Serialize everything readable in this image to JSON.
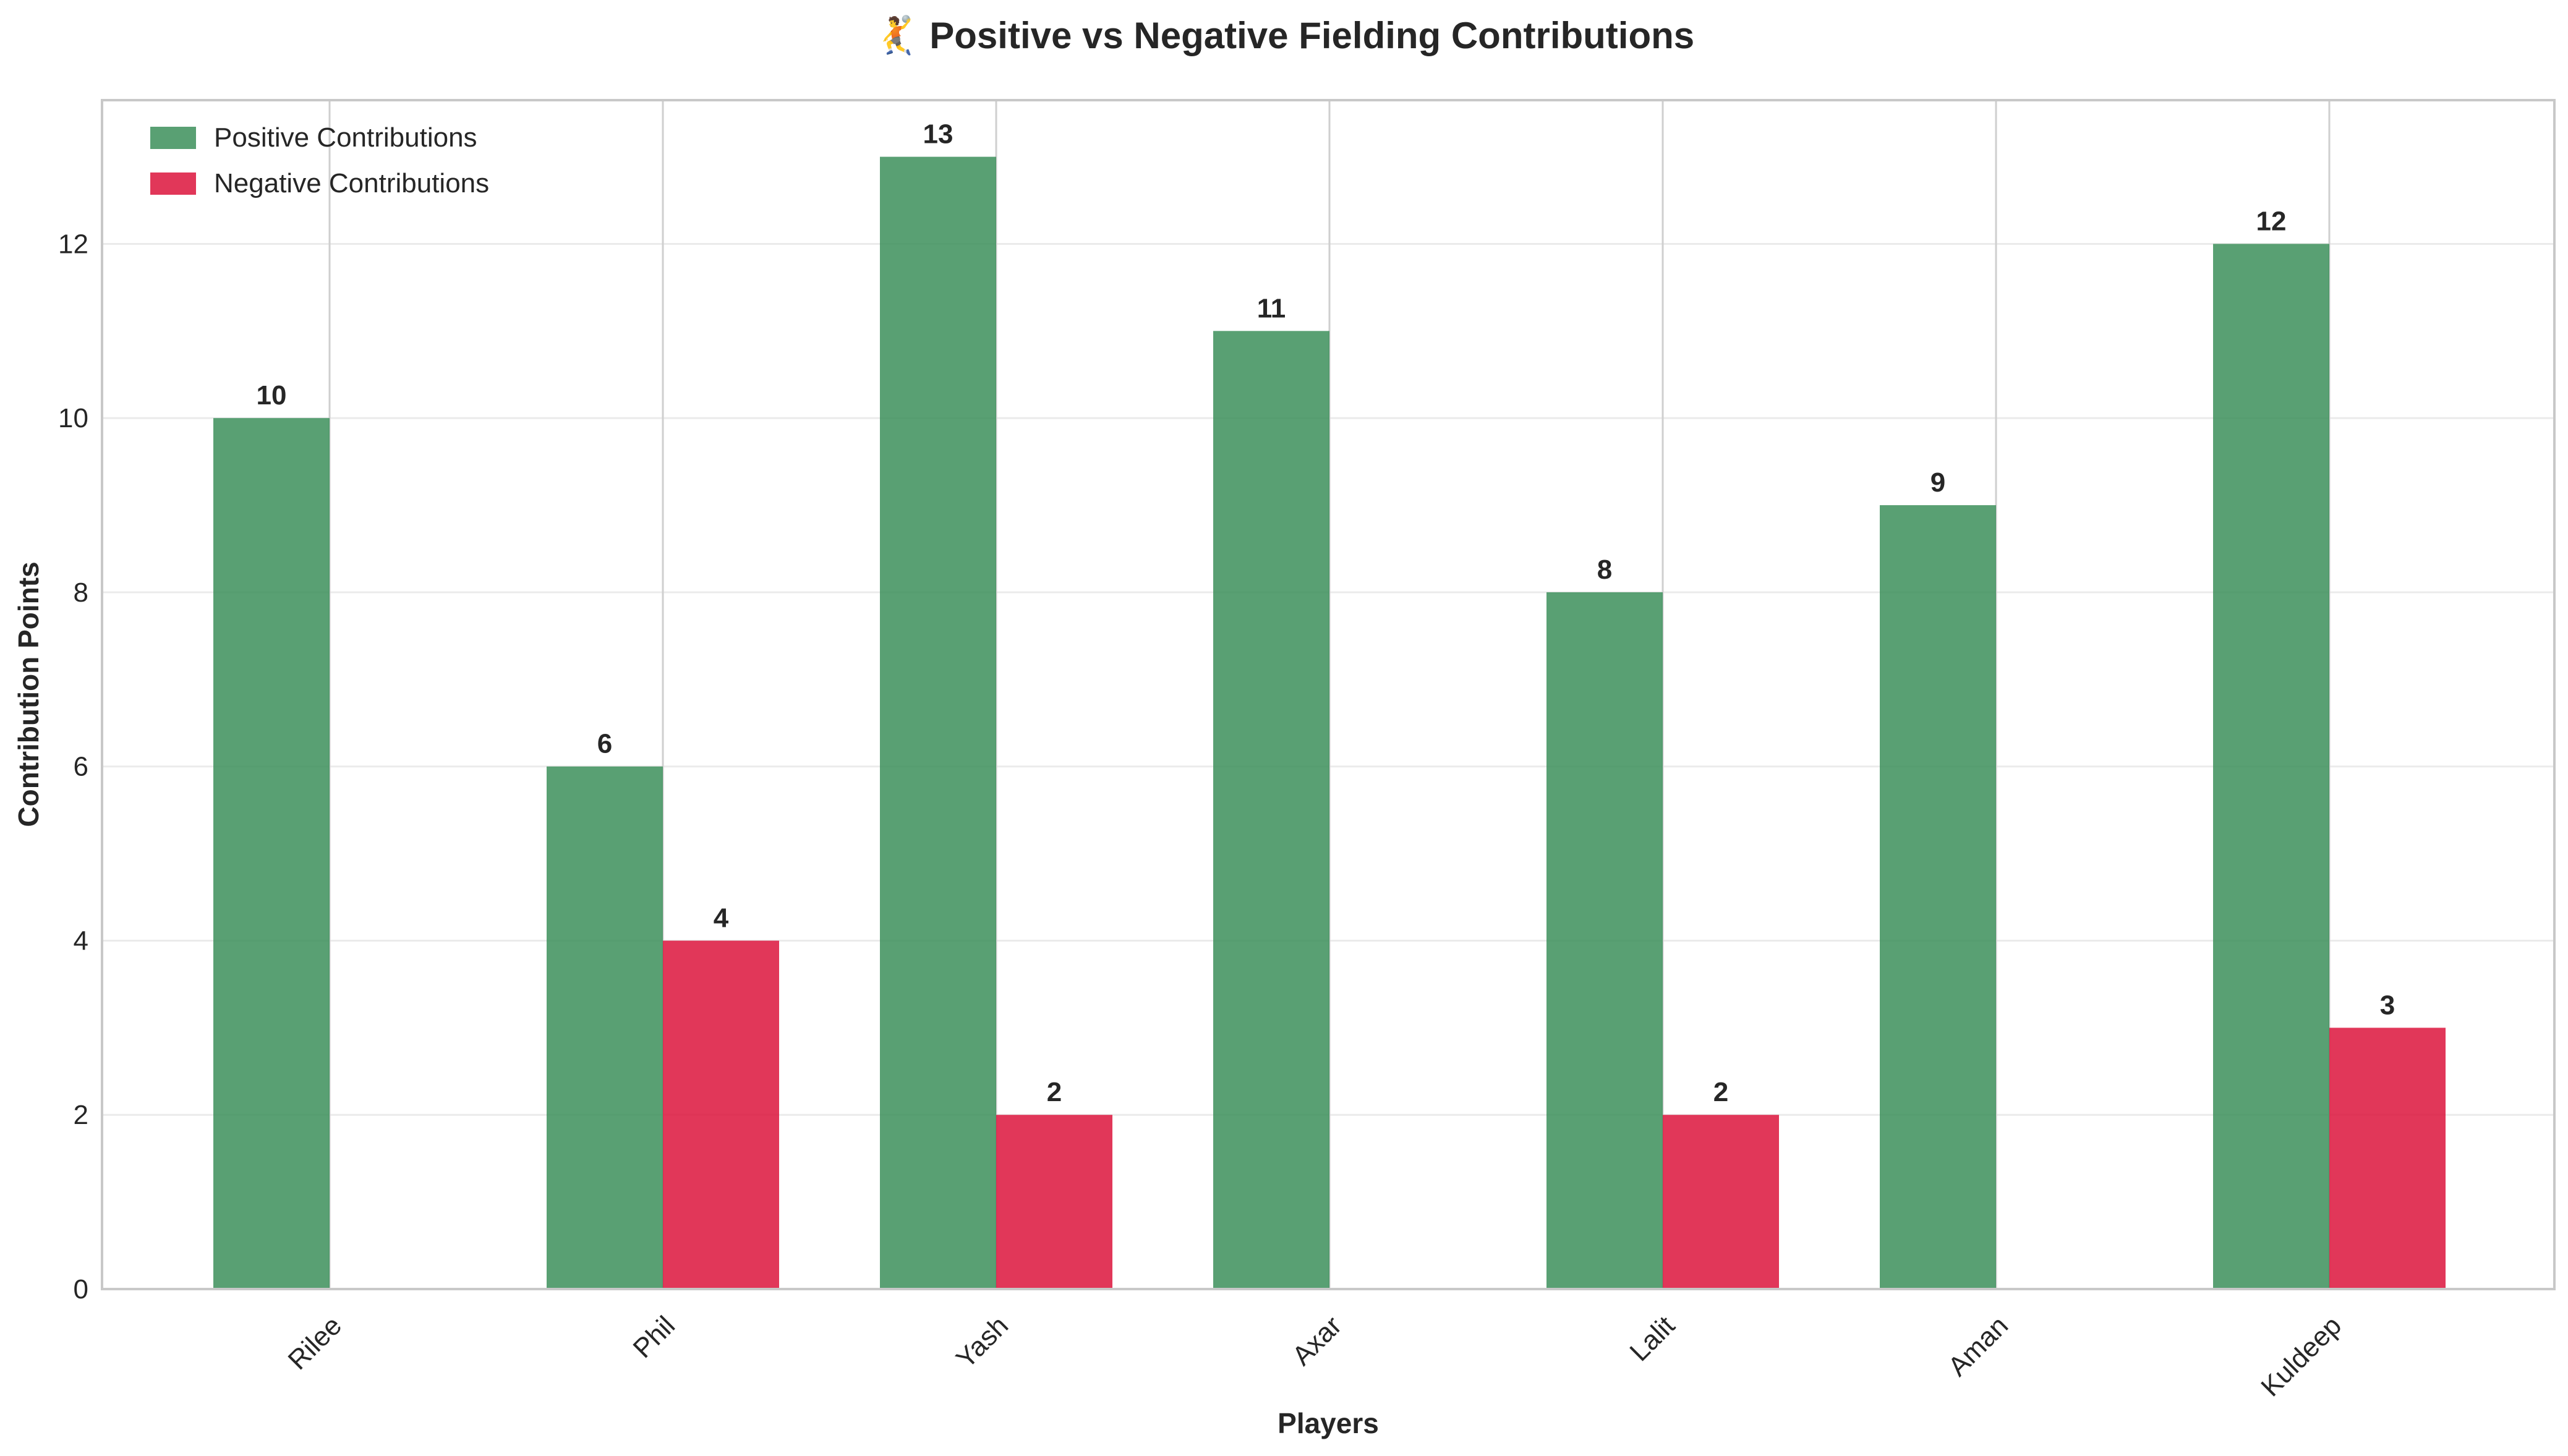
{
  "chart_data": {
    "type": "bar",
    "title": "🤾 Positive vs Negative Fielding Contributions",
    "title_icon": "fielding-emoji-icon",
    "xlabel": "Players",
    "ylabel": "Contribution Points",
    "categories": [
      "Rilee",
      "Phil",
      "Yash",
      "Axar",
      "Lalit",
      "Aman",
      "Kuldeep"
    ],
    "series": [
      {
        "name": "Positive Contributions",
        "color": "#3c8f5a",
        "values": [
          10,
          6,
          13,
          11,
          8,
          9,
          12
        ]
      },
      {
        "name": "Negative Contributions",
        "color": "#dc143c",
        "values": [
          0,
          4,
          2,
          0,
          2,
          0,
          3
        ]
      }
    ],
    "ylim": [
      0,
      13.65
    ],
    "yticks": [
      0,
      2,
      4,
      6,
      8,
      10,
      12
    ],
    "grid": true,
    "legend": "top-left",
    "tick_label_rotation": 45
  }
}
